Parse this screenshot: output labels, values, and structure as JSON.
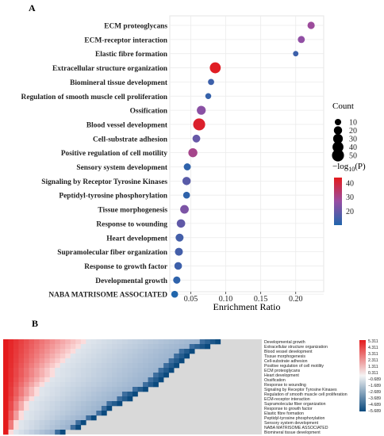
{
  "chart_data": [
    {
      "type": "scatter",
      "panel_label": "A",
      "xlabel": "Enrichment Ratio",
      "ylabel": "",
      "xlim": [
        0.02,
        0.24
      ],
      "x_ticks": [
        0.05,
        0.1,
        0.15,
        0.2
      ],
      "x_tick_labels": [
        "0.05",
        "0.10",
        "0.15",
        "0.20"
      ],
      "grid": true,
      "legend_position": "right",
      "categories": [
        "ECM proteoglycans",
        "ECM-receptor interaction",
        "Elastic fibre formation",
        "Extracellular structure organization",
        "Biomineral tissue development",
        "Regulation of smooth muscle cell proliferation",
        "Ossification",
        "Blood vessel development",
        "Cell-substrate adhesion",
        "Positive regulation of cell motility",
        "Sensory system development",
        "Signaling by Receptor Tyrosine Kinases",
        "Peptidyl-tyrosine phosphorylation",
        "Tissue morphogenesis",
        "Response to wounding",
        "Heart development",
        "Supramolecular fiber organization",
        "Response to growth factor",
        "Developmental growth",
        "NABA MATRISOME ASSOCIATED"
      ],
      "points": [
        {
          "x": 0.222,
          "count": 14,
          "neg_log10_p": 28
        },
        {
          "x": 0.208,
          "count": 13,
          "neg_log10_p": 26
        },
        {
          "x": 0.2,
          "count": 6,
          "neg_log10_p": 14
        },
        {
          "x": 0.085,
          "count": 40,
          "neg_log10_p": 43
        },
        {
          "x": 0.079,
          "count": 9,
          "neg_log10_p": 14
        },
        {
          "x": 0.075,
          "count": 8,
          "neg_log10_p": 13
        },
        {
          "x": 0.065,
          "count": 24,
          "neg_log10_p": 25
        },
        {
          "x": 0.062,
          "count": 50,
          "neg_log10_p": 42
        },
        {
          "x": 0.058,
          "count": 17,
          "neg_log10_p": 20
        },
        {
          "x": 0.053,
          "count": 25,
          "neg_log10_p": 30
        },
        {
          "x": 0.045,
          "count": 13,
          "neg_log10_p": 12
        },
        {
          "x": 0.044,
          "count": 20,
          "neg_log10_p": 18
        },
        {
          "x": 0.044,
          "count": 12,
          "neg_log10_p": 12
        },
        {
          "x": 0.041,
          "count": 22,
          "neg_log10_p": 23
        },
        {
          "x": 0.036,
          "count": 21,
          "neg_log10_p": 19
        },
        {
          "x": 0.034,
          "count": 18,
          "neg_log10_p": 15
        },
        {
          "x": 0.033,
          "count": 18,
          "neg_log10_p": 15
        },
        {
          "x": 0.032,
          "count": 16,
          "neg_log10_p": 14
        },
        {
          "x": 0.03,
          "count": 14,
          "neg_log10_p": 12
        },
        {
          "x": 0.027,
          "count": 12,
          "neg_log10_p": 10
        }
      ],
      "size_legend": {
        "title": "Count",
        "values": [
          10,
          20,
          30,
          40,
          50
        ]
      },
      "color_legend": {
        "title_prefix": "−log",
        "title_sub": "10",
        "title_suffix": "(P)",
        "ticks": [
          20,
          30,
          40
        ],
        "range": [
          10,
          44
        ],
        "color_low": "#2166ac",
        "color_mid": "#984ea3",
        "color_high": "#e41a1c"
      }
    },
    {
      "type": "heatmap",
      "panel_label": "B",
      "row_labels": [
        "Developmental growth",
        "Extracellular structure organization",
        "Blood vessel development",
        "Tissue morphogenesis",
        "Cell-substrate adhesion",
        "Positive regulation of cell motility",
        "ECM proteoglycans",
        "Heart development",
        "Ossification",
        "Response to wounding",
        "Signaling by Receptor Tyrosine Kinases",
        "Regulation of smooth muscle cell proliferation",
        "ECM-receptor interaction",
        "Supramolecular fiber organization",
        "Response to growth factor",
        "Elastic fibre formation",
        "Peptidyl-tyrosine phosphorylation",
        "Sensory system development",
        "NABA MATRISOME ASSOCIATED",
        "Biomineral tissue development"
      ],
      "n_columns": 50,
      "value_range": [
        -5.689,
        5.311
      ],
      "colorbar_ticks": [
        "5.311",
        "4.311",
        "3.311",
        "2.311",
        "1.311",
        "0.311",
        "−0.689",
        "−1.689",
        "−2.689",
        "−3.689",
        "−4.689",
        "−5.689"
      ],
      "colors": {
        "high": "#e41a1c",
        "zero": "#dfe5ec",
        "low": "#0b4a7e",
        "background": "#d9d9d9"
      },
      "rows": [
        {
          "red": 16,
          "lightblue": 22,
          "blue": 4
        },
        {
          "red": 15,
          "lightblue": 21,
          "blue": 4
        },
        {
          "red": 14,
          "lightblue": 20,
          "blue": 3
        },
        {
          "red": 13,
          "lightblue": 20,
          "blue": 3
        },
        {
          "red": 12,
          "lightblue": 20,
          "blue": 3
        },
        {
          "red": 11,
          "lightblue": 20,
          "blue": 3
        },
        {
          "red": 10,
          "lightblue": 20,
          "blue": 3
        },
        {
          "red": 10,
          "lightblue": 19,
          "blue": 3
        },
        {
          "red": 9,
          "lightblue": 19,
          "blue": 3
        },
        {
          "red": 8,
          "lightblue": 19,
          "blue": 3
        },
        {
          "red": 7,
          "lightblue": 18,
          "blue": 3
        },
        {
          "red": 7,
          "lightblue": 16,
          "blue": 3
        },
        {
          "red": 6,
          "lightblue": 16,
          "blue": 3
        },
        {
          "red": 5,
          "lightblue": 15,
          "blue": 3
        },
        {
          "red": 5,
          "lightblue": 14,
          "blue": 2
        },
        {
          "red": 4,
          "lightblue": 14,
          "blue": 2
        },
        {
          "red": 4,
          "lightblue": 12,
          "blue": 2
        },
        {
          "red": 3,
          "lightblue": 11,
          "blue": 2
        },
        {
          "red": 3,
          "lightblue": 10,
          "blue": 2
        },
        {
          "red": 2,
          "lightblue": 8,
          "blue": 2
        }
      ]
    }
  ]
}
